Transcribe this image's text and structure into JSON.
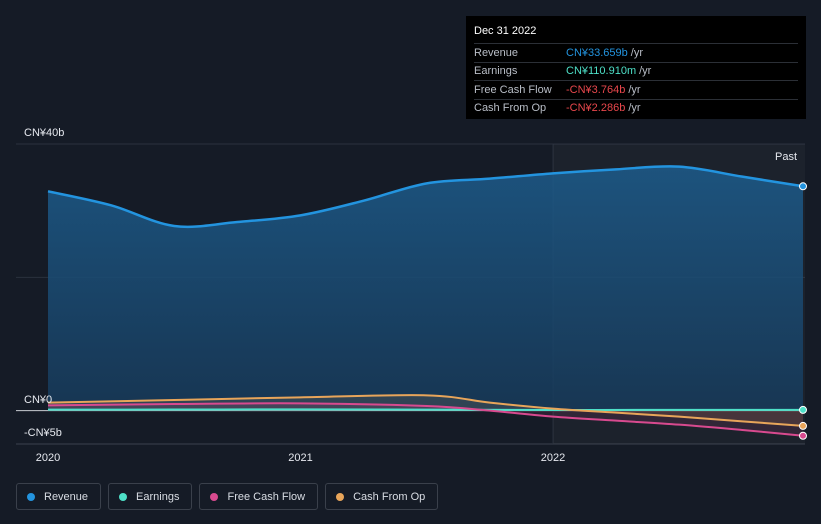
{
  "chart_data": {
    "type": "area",
    "title": "",
    "xlabel": "",
    "ylabel": "",
    "ylim": [
      -5,
      40
    ],
    "y_ticks": [
      {
        "label": "CN¥40b",
        "value": 40
      },
      {
        "label": "CN¥0",
        "value": 0
      },
      {
        "label": "-CN¥5b",
        "value": -5
      }
    ],
    "x_ticks": [
      {
        "label": "2020",
        "value": 2020.0
      },
      {
        "label": "2021",
        "value": 2021.0
      },
      {
        "label": "2022",
        "value": 2022.0
      }
    ],
    "xlim": [
      2019.87,
      2022.99
    ],
    "past_label": "Past",
    "past_start": 2022.0,
    "grid": true,
    "legend_position": "bottom-left",
    "series": [
      {
        "name": "Revenue",
        "color": "#2394df",
        "x": [
          2020.0,
          2020.25,
          2020.5,
          2020.75,
          2021.0,
          2021.25,
          2021.5,
          2021.75,
          2022.0,
          2022.25,
          2022.5,
          2022.75,
          2022.99
        ],
        "values": [
          32.9,
          30.8,
          27.7,
          28.3,
          29.3,
          31.5,
          34.1,
          34.8,
          35.6,
          36.2,
          36.6,
          35.1,
          33.66
        ]
      },
      {
        "name": "Earnings",
        "color": "#4ee0c8",
        "x": [
          2020.0,
          2020.5,
          2021.0,
          2021.5,
          2022.0,
          2022.5,
          2022.99
        ],
        "values": [
          0.15,
          0.17,
          0.2,
          0.15,
          0.1,
          0.12,
          0.111
        ]
      },
      {
        "name": "Free Cash Flow",
        "color": "#d84a8f",
        "x": [
          2020.0,
          2020.5,
          2021.0,
          2021.5,
          2021.75,
          2022.0,
          2022.25,
          2022.5,
          2022.75,
          2022.99
        ],
        "values": [
          0.8,
          1.0,
          1.1,
          0.7,
          0.0,
          -0.9,
          -1.5,
          -2.1,
          -2.9,
          -3.764
        ]
      },
      {
        "name": "Cash From Op",
        "color": "#e8a55a",
        "x": [
          2020.0,
          2020.5,
          2021.0,
          2021.5,
          2021.75,
          2022.0,
          2022.25,
          2022.5,
          2022.75,
          2022.99
        ],
        "values": [
          1.2,
          1.6,
          2.0,
          2.3,
          1.2,
          0.3,
          -0.3,
          -0.9,
          -1.6,
          -2.286
        ]
      }
    ]
  },
  "tooltip": {
    "date": "Dec 31 2022",
    "rows": [
      {
        "label": "Revenue",
        "value": "CN¥33.659b",
        "unit": "/yr",
        "color": "#2394df"
      },
      {
        "label": "Earnings",
        "value": "CN¥110.910m",
        "unit": "/yr",
        "color": "#4ee0c8"
      },
      {
        "label": "Free Cash Flow",
        "value": "-CN¥3.764b",
        "unit": "/yr",
        "color": "#e8474c"
      },
      {
        "label": "Cash From Op",
        "value": "-CN¥2.286b",
        "unit": "/yr",
        "color": "#e8474c"
      }
    ]
  },
  "legend": {
    "items": [
      {
        "label": "Revenue",
        "color": "#2394df"
      },
      {
        "label": "Earnings",
        "color": "#4ee0c8"
      },
      {
        "label": "Free Cash Flow",
        "color": "#d84a8f"
      },
      {
        "label": "Cash From Op",
        "color": "#e8a55a"
      }
    ]
  }
}
